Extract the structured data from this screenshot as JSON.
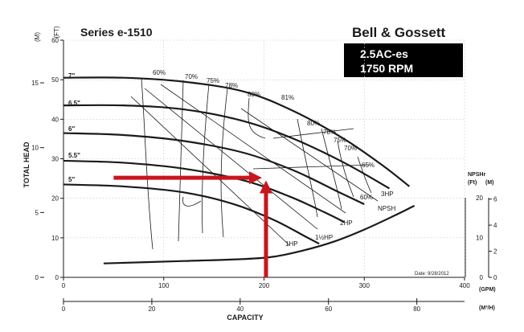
{
  "header": {
    "series": "Series e-1510",
    "brand": "Bell & Gossett",
    "model": "2.5AC-es",
    "speed": "1750 RPM"
  },
  "axes": {
    "y_left_label": "TOTAL HEAD",
    "y_unit_m": "(M)",
    "y_unit_ft": "(FT)",
    "x_label": "CAPACITY",
    "x_unit_gpm": "(GPM)",
    "x_unit_m3h": "(M³/H)",
    "npsh_label": "NPSHr",
    "npsh_unit_ft": "(Ft)",
    "npsh_unit_m": "(M)",
    "date": "Date: 9/28/2012"
  },
  "chart_data": {
    "type": "line",
    "title": "Series e-1510",
    "x_gpm": {
      "min": 0,
      "max": 400,
      "ticks": [
        0,
        100,
        200,
        300,
        400
      ]
    },
    "x_m3h": {
      "min": 0,
      "max": 90.8,
      "ticks": [
        0,
        20,
        40,
        60,
        80
      ]
    },
    "y_ft": {
      "min": 0,
      "max": 60,
      "ticks": [
        0,
        10,
        20,
        30,
        40,
        50,
        60
      ]
    },
    "y_m": {
      "ticks": [
        0,
        5,
        10,
        15
      ]
    },
    "npsh_ft_ticks": [
      0,
      10,
      20
    ],
    "npsh_m_ticks": [
      0,
      2,
      4,
      6
    ],
    "impellers": [
      {
        "label": "7\"",
        "points": [
          [
            0,
            50.5
          ],
          [
            60,
            50.5
          ],
          [
            120,
            49.5
          ],
          [
            180,
            47
          ],
          [
            230,
            42
          ],
          [
            280,
            35
          ],
          [
            320,
            28
          ],
          [
            345,
            23
          ]
        ]
      },
      {
        "label": "6.5\"",
        "points": [
          [
            0,
            43.5
          ],
          [
            60,
            43.5
          ],
          [
            120,
            42.5
          ],
          [
            180,
            39.5
          ],
          [
            230,
            35
          ],
          [
            280,
            29
          ],
          [
            325,
            22.5
          ]
        ]
      },
      {
        "label": "6\"",
        "points": [
          [
            0,
            36.5
          ],
          [
            60,
            36
          ],
          [
            120,
            34.5
          ],
          [
            180,
            31.5
          ],
          [
            230,
            27
          ],
          [
            275,
            21.5
          ],
          [
            300,
            18.5
          ]
        ]
      },
      {
        "label": "5.5\"",
        "points": [
          [
            0,
            29.5
          ],
          [
            60,
            29
          ],
          [
            120,
            27.5
          ],
          [
            180,
            24.5
          ],
          [
            225,
            20.5
          ],
          [
            260,
            16.5
          ],
          [
            280,
            14
          ]
        ]
      },
      {
        "label": "5\"",
        "points": [
          [
            0,
            23.5
          ],
          [
            60,
            23
          ],
          [
            120,
            21.5
          ],
          [
            170,
            18.5
          ],
          [
            210,
            14.5
          ],
          [
            240,
            10.5
          ],
          [
            255,
            8.5
          ]
        ]
      }
    ],
    "efficiency_labels": [
      "60%",
      "70%",
      "75%",
      "78%",
      "80%",
      "81%",
      "80%",
      "78%",
      "75%",
      "70%",
      "65%",
      "60%"
    ],
    "hp_labels": [
      "1HP",
      "1½HP",
      "2HP",
      "3HP"
    ],
    "npsh_curve_label": "NPSH",
    "npsh_points": [
      [
        40,
        3.5
      ],
      [
        120,
        4.1
      ],
      [
        180,
        4.6
      ],
      [
        210,
        5.2
      ],
      [
        240,
        6.8
      ],
      [
        270,
        9.0
      ],
      [
        300,
        12.0
      ],
      [
        330,
        15.5
      ],
      [
        350,
        18.0
      ]
    ],
    "arrows": [
      {
        "color": "#c8161d",
        "from": [
          50,
          25.2
        ],
        "to": [
          198,
          25.2
        ]
      },
      {
        "color": "#c8161d",
        "from": [
          202,
          0
        ],
        "to": [
          202,
          24.5
        ]
      }
    ]
  }
}
